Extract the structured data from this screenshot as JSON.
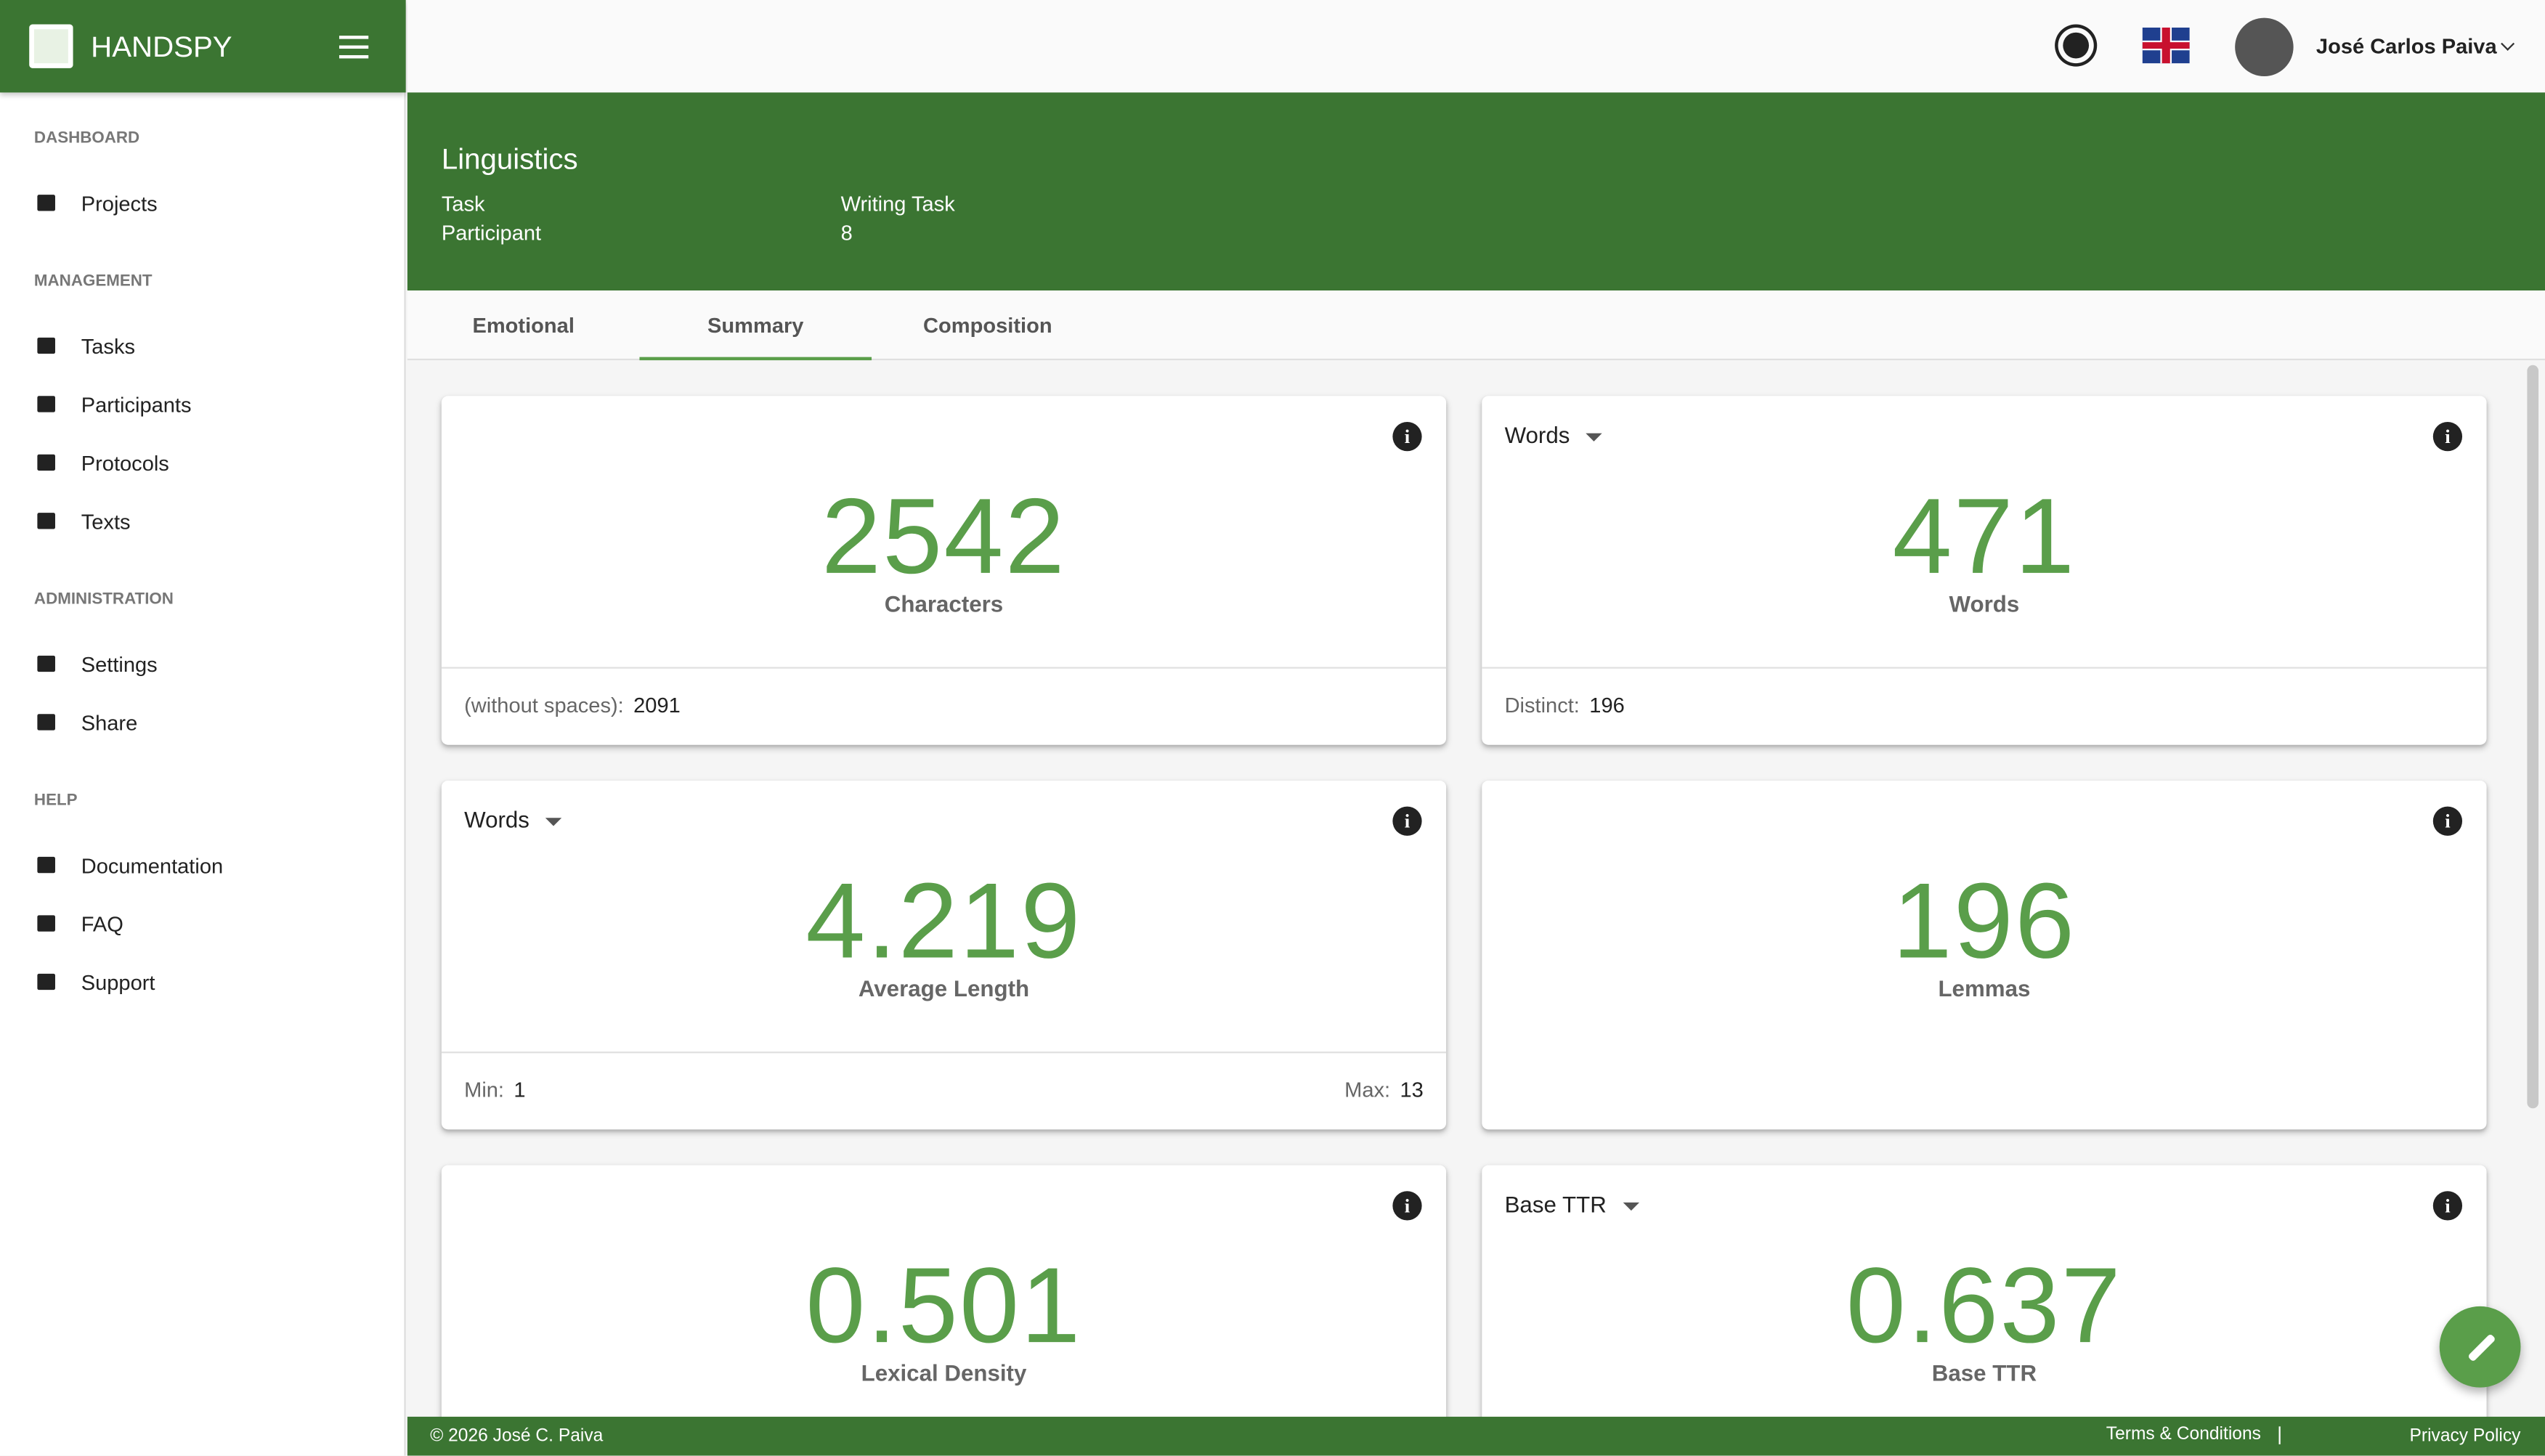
{
  "app": {
    "name": "HANDSPY",
    "user": "José Carlos Paiva"
  },
  "sidebar": {
    "sections": [
      {
        "title": "DASHBOARD",
        "items": [
          "Projects"
        ]
      },
      {
        "title": "MANAGEMENT",
        "items": [
          "Tasks",
          "Participants",
          "Protocols",
          "Texts"
        ]
      },
      {
        "title": "ADMINISTRATION",
        "items": [
          "Settings",
          "Share"
        ]
      },
      {
        "title": "HELP",
        "items": [
          "Documentation",
          "FAQ",
          "Support"
        ]
      }
    ]
  },
  "banner": {
    "title": "Linguistics",
    "fields": [
      {
        "label": "Task",
        "value": "Writing Task"
      },
      {
        "label": "Participant",
        "value": "8"
      }
    ]
  },
  "tabs": {
    "items": [
      "Emotional",
      "Summary",
      "Composition"
    ],
    "active": 1
  },
  "cards": [
    {
      "value": "2542",
      "label": "Characters",
      "footer": [
        {
          "label": "(without spaces):",
          "value": "2091"
        }
      ]
    },
    {
      "selector": "Words",
      "value": "471",
      "label": "Words",
      "footer": [
        {
          "label": "Distinct:",
          "value": "196"
        }
      ]
    },
    {
      "selector": "Words",
      "value": "4.219",
      "label": "Average Length",
      "footer": [
        {
          "label": "Min:",
          "value": "1"
        },
        {
          "label": "Max:",
          "value": "13"
        }
      ]
    },
    {
      "value": "196",
      "label": "Lemmas"
    },
    {
      "value": "0.501",
      "label": "Lexical Density"
    },
    {
      "selector": "Base TTR",
      "value": "0.637",
      "label": "Base TTR"
    }
  ],
  "footer": {
    "copyright": "© 2026 José C. Paiva",
    "links": [
      "Terms & Conditions",
      "Privacy Policy"
    ]
  }
}
